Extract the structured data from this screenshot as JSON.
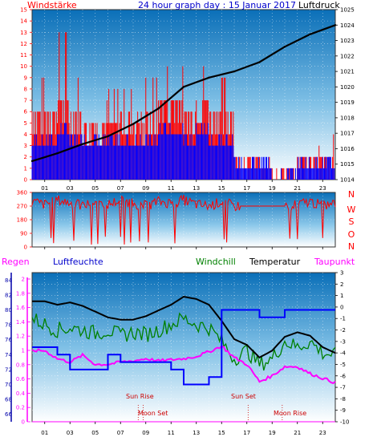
{
  "title": "24 hour graph day : 15 Januar 2017",
  "colors": {
    "wind_gust": "#ff0000",
    "wind_avg": "#0000ff",
    "pressure": "#000000",
    "wind_dir": "#ff0000",
    "temperature": "#000000",
    "windchill": "#008000",
    "dewpoint": "#ff00ff",
    "humidity": "#0000ff",
    "rain_axis": "#ff00ff"
  },
  "x_axis": {
    "range": [
      0,
      24
    ],
    "tick_labels": [
      "01",
      "03",
      "05",
      "07",
      "09",
      "11",
      "13",
      "15",
      "17",
      "19",
      "21",
      "23"
    ],
    "tick_hours": [
      1,
      3,
      5,
      7,
      9,
      11,
      13,
      15,
      17,
      19,
      21,
      23
    ]
  },
  "chart_data": [
    {
      "type": "bar",
      "name": "wind_speed",
      "ylabel": "Windstärke",
      "ylim": [
        0,
        15
      ],
      "yticks": [
        0,
        1,
        2,
        3,
        4,
        5,
        6,
        7,
        8,
        9,
        10,
        11,
        12,
        13,
        14,
        15
      ],
      "gust_hours": [
        0,
        1,
        2,
        3,
        4,
        5,
        6,
        7,
        8,
        9,
        10,
        11,
        12,
        13,
        14,
        15,
        16,
        17,
        18,
        19,
        20,
        21,
        22,
        23
      ],
      "gust_max": [
        9,
        10,
        13,
        9,
        8,
        7,
        8,
        8,
        6,
        9,
        10,
        10,
        9,
        10,
        8,
        9,
        3,
        2,
        2,
        1,
        1,
        2,
        3,
        4
      ],
      "gust_typical": [
        6,
        6,
        7,
        6,
        5,
        5,
        5,
        6,
        5,
        6,
        7,
        7,
        6,
        7,
        6,
        6,
        2,
        2,
        1,
        1,
        1,
        2,
        2,
        2
      ],
      "avg_typical": [
        3,
        3,
        4,
        3,
        3,
        3,
        3,
        3,
        3,
        3,
        4,
        4,
        3,
        4,
        3,
        3,
        1,
        1,
        1,
        0,
        0,
        1,
        1,
        1
      ]
    },
    {
      "type": "line",
      "name": "pressure",
      "ylabel": "Luftdruck",
      "ylim": [
        1014,
        1025
      ],
      "yticks": [
        1014,
        1015,
        1016,
        1017,
        1018,
        1019,
        1020,
        1021,
        1022,
        1023,
        1024,
        1025
      ],
      "x": [
        0,
        2,
        4,
        6,
        8,
        10,
        12,
        14,
        16,
        18,
        20,
        22,
        24
      ],
      "y": [
        1015.2,
        1015.7,
        1016.3,
        1016.8,
        1017.6,
        1018.6,
        1020.0,
        1020.6,
        1021.0,
        1021.6,
        1022.6,
        1023.4,
        1024.0
      ]
    },
    {
      "type": "line",
      "name": "wind_direction",
      "yticks": [
        0,
        90,
        180,
        270,
        360
      ],
      "compass_labels": [
        "N",
        "W",
        "S",
        "O",
        "N"
      ],
      "ylim": [
        0,
        360
      ],
      "x": [
        0,
        1,
        2,
        3,
        4,
        5,
        6,
        7,
        8,
        9,
        10,
        11,
        12,
        13,
        14,
        15,
        16,
        17,
        18,
        19,
        20,
        21,
        22,
        23,
        24
      ],
      "y": [
        300,
        280,
        310,
        290,
        270,
        300,
        280,
        310,
        290,
        270,
        300,
        290,
        310,
        280,
        270,
        300,
        270,
        270,
        270,
        270,
        270,
        280,
        300,
        270,
        290
      ]
    },
    {
      "type": "line",
      "name": "bottom_panel",
      "labels": {
        "rain": "Regen",
        "humidity": "Luftfeuchte",
        "windchill": "Windchill",
        "temperature": "Temperatur",
        "dewpoint": "Taupunkt"
      },
      "temp_ylim": [
        -10,
        3
      ],
      "temp_yticks": [
        3,
        2,
        1,
        0,
        -1,
        -2,
        -3,
        -4,
        -5,
        -6,
        -7,
        -8,
        -9,
        -10
      ],
      "humidity_yticks": [
        84,
        82,
        80,
        78,
        76,
        74,
        72,
        70,
        68,
        66
      ],
      "humidity_ylim": [
        65,
        85
      ],
      "rain_yticks": [
        2,
        1.8,
        1.6,
        1.4,
        1.2,
        1,
        0.8,
        0.6,
        0.4,
        0.2,
        0
      ],
      "rain_ylim": [
        0,
        2
      ],
      "x": [
        0,
        1,
        2,
        3,
        4,
        5,
        6,
        7,
        8,
        9,
        10,
        11,
        12,
        13,
        14,
        15,
        16,
        17,
        18,
        19,
        20,
        21,
        22,
        23,
        24
      ],
      "temperature": [
        0.5,
        0.5,
        0.2,
        0.4,
        0.1,
        -0.4,
        -0.9,
        -1.1,
        -1.1,
        -0.8,
        -0.3,
        0.2,
        0.9,
        0.7,
        0.2,
        -1.2,
        -2.8,
        -3.3,
        -4.4,
        -3.8,
        -2.6,
        -2.2,
        -2.5,
        -3.5,
        -4.0
      ],
      "windchill": [
        -1.0,
        -1.5,
        -2.0,
        -1.8,
        -2.0,
        -2.3,
        -2.0,
        -2.5,
        -2.2,
        -2.4,
        -2.0,
        -1.5,
        -1.0,
        -1.5,
        -1.8,
        -3.0,
        -4.5,
        -3.8,
        -5.0,
        -4.5,
        -3.0,
        -3.5,
        -3.0,
        -4.0,
        -4.2
      ],
      "dewpoint": [
        -3.8,
        -3.8,
        -4.5,
        -4.8,
        -4.2,
        -5.0,
        -5.0,
        -4.8,
        -4.7,
        -4.5,
        -4.7,
        -4.6,
        -4.5,
        -4.3,
        -3.9,
        -3.4,
        -4.4,
        -5.0,
        -6.5,
        -6.0,
        -5.2,
        -5.2,
        -5.8,
        -6.2,
        -6.6
      ],
      "humidity": [
        75,
        75,
        74,
        72,
        72,
        72,
        74,
        73,
        73,
        73,
        73,
        72,
        70,
        70,
        71,
        80,
        80,
        80,
        79,
        79,
        80,
        80,
        80,
        80,
        80
      ],
      "rain": [
        0,
        0,
        0,
        0,
        0,
        0,
        0,
        0,
        0,
        0,
        0,
        0,
        0,
        0,
        0,
        0,
        0,
        0,
        0,
        0,
        0,
        0,
        0,
        0,
        0
      ],
      "events": {
        "sun_rise": "Sun Rise",
        "moon_set": "Moon Set",
        "sun_set": "Sun Set",
        "moon_rise": "Moon Rise"
      },
      "event_hours": {
        "sun_rise": 8.4,
        "moon_set": 8.8,
        "sun_set": 17.1,
        "moon_rise": 19.8
      },
      "event_text_at_midnight": "Sun Set"
    }
  ],
  "charts": {
    "wind_speed": {
      "ylabel": "Windstärke"
    },
    "pressure": {
      "ylabel": "Luftdruck"
    },
    "bottom": {
      "labels": {
        "rain": "Regen",
        "humidity": "Luftfeuchte",
        "windchill": "Windchill",
        "temperature": "Temperatur",
        "dewpoint": "Taupunkt"
      },
      "events": {
        "sun_rise": "Sun Rise",
        "moon_set": "Moon Set",
        "sun_set": "Sun Set",
        "moon_rise": "Moon Rise"
      }
    }
  }
}
